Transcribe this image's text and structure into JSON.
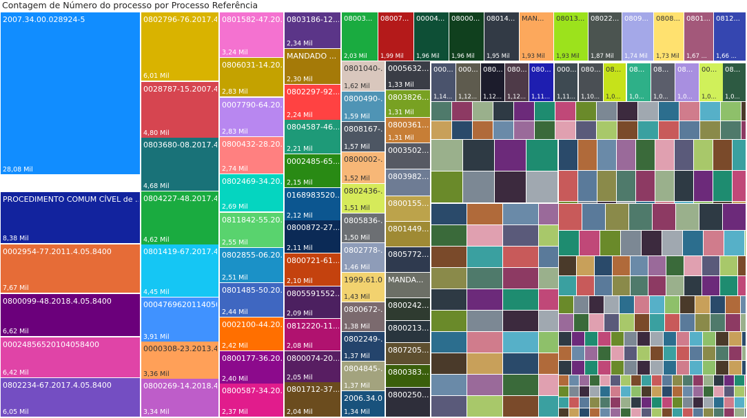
{
  "chart_data": {
    "type": "treemap",
    "title": "Contagem de Número do processo por Processo Referência",
    "value_unit": "Mil",
    "items": [
      {
        "label": "2007.34.00.028924-5",
        "value": "28,08 Mil",
        "color": "#118DFF"
      },
      {
        "label": "PROCEDIMENTO COMUM CÍVEL de ...",
        "value": "8,38 Mil",
        "color": "#12239E"
      },
      {
        "label": "0002954-77.2011.4.05.8400",
        "value": "7,67 Mil",
        "color": "#E66C37"
      },
      {
        "label": "0800099-48.2018.4.05.8400",
        "value": "6,62 Mil",
        "color": "#6B007B"
      },
      {
        "label": "00024856520104058400",
        "value": "6,42 Mil",
        "color": "#E044A7"
      },
      {
        "label": "0802234-67.2017.4.05.8400",
        "value": "6,05 Mil",
        "color": "#744EC2"
      },
      {
        "label": "0802796-76.2017.4...",
        "value": "6,01 Mil",
        "color": "#D9B300"
      },
      {
        "label": "0028787-15.2007.4...",
        "value": "4,80 Mil",
        "color": "#D64550"
      },
      {
        "label": "0803680-08.2017.4...",
        "value": "4,68 Mil",
        "color": "#197278"
      },
      {
        "label": "0804227-48.2017.4...",
        "value": "4,62 Mil",
        "color": "#1AAB40"
      },
      {
        "label": "0801419-67.2017.4...",
        "value": "4,45 Mil",
        "color": "#15C6F4"
      },
      {
        "label": "0004769620114050...",
        "value": "3,91 Mil",
        "color": "#4092FF"
      },
      {
        "label": "0000308-23.2013.4...",
        "value": "3,36 Mil",
        "color": "#FFA058"
      },
      {
        "label": "0800269-14.2018.4...",
        "value": "3,34 Mil",
        "color": "#BE5DC9"
      },
      {
        "label": "0801582-47.20...",
        "value": "3,24 Mil",
        "color": "#F472D0"
      },
      {
        "label": "0806031-14.20...",
        "value": "2,83 Mil",
        "color": "#C4A200"
      },
      {
        "label": "0007790-64.20...",
        "value": "2,83 Mil",
        "color": "#B887F0"
      },
      {
        "label": "0800432-28.20...",
        "value": "2,74 Mil",
        "color": "#FF8080"
      },
      {
        "label": "0802469-34.20...",
        "value": "2,69 Mil",
        "color": "#05D5C0"
      },
      {
        "label": "0811842-55.20...",
        "value": "2,55 Mil",
        "color": "#59D36E"
      },
      {
        "label": "0802855-06.20...",
        "value": "2,51 Mil",
        "color": "#1B91C7"
      },
      {
        "label": "0801485-50.20...",
        "value": "2,44 Mil",
        "color": "#3F67C1"
      },
      {
        "label": "0002100-44.20...",
        "value": "2,42 Mil",
        "color": "#FF6F00"
      },
      {
        "label": "0800177-36.20...",
        "value": "2,40 Mil",
        "color": "#8C0A8C"
      },
      {
        "label": "0800587-34.20...",
        "value": "2,37 Mil",
        "color": "#E11C8C"
      },
      {
        "label": "0803186-12....",
        "value": "2,34 Mil",
        "color": "#5B3588"
      },
      {
        "label": "MANDADO ...",
        "value": "2,30 Mil",
        "color": "#A57A08"
      },
      {
        "label": "0802297-92....",
        "value": "2,24 Mil",
        "color": "#FF4242"
      },
      {
        "label": "0804587-46....",
        "value": "2,21 Mil",
        "color": "#1E9A78"
      },
      {
        "label": "0002485-65....",
        "value": "2,15 Mil",
        "color": "#298A14"
      },
      {
        "label": "0168983520...",
        "value": "2,12 Mil",
        "color": "#0C5690"
      },
      {
        "label": "0800872-27....",
        "value": "2,11 Mil",
        "color": "#0B2A56"
      },
      {
        "label": "0800721-61....",
        "value": "2,10 Mil",
        "color": "#C4420E"
      },
      {
        "label": "0805591552...",
        "value": "2,09 Mil",
        "color": "#4C2060"
      },
      {
        "label": "0812220-11....",
        "value": "2,08 Mil",
        "color": "#B0126F"
      },
      {
        "label": "0800074-20....",
        "value": "2,05 Mil",
        "color": "#581E62"
      },
      {
        "label": "0801712-37....",
        "value": "2,04 Mil",
        "color": "#6B4C1E"
      },
      {
        "label": "08003...",
        "value": "2,03 Mil",
        "color": "#1AAB40"
      },
      {
        "label": "08007...",
        "value": "1,99 Mil",
        "color": "#B41A1A"
      },
      {
        "label": "00004...",
        "value": "1,96 Mil",
        "color": "#0E4F36"
      },
      {
        "label": "08000...",
        "value": "1,96 Mil",
        "color": "#10401E"
      },
      {
        "label": "08014...",
        "value": "1,95 Mil",
        "color": "#323A45"
      },
      {
        "label": "MAN...",
        "value": "1,93 Mil",
        "color": "#FCA85C"
      },
      {
        "label": "08013...",
        "value": "1,93 Mil",
        "color": "#9CE21C"
      },
      {
        "label": "08022...",
        "value": "1,87 Mil",
        "color": "#4B5450"
      },
      {
        "label": "0809...",
        "value": "1,74 Mil",
        "color": "#A4A8E8"
      },
      {
        "label": "0808...",
        "value": "1,73 Mil",
        "color": "#FFE16F"
      },
      {
        "label": "0801...",
        "value": "1,67 ...",
        "color": "#A3587A"
      },
      {
        "label": "0812...",
        "value": "1,66 ...",
        "color": "#3546B0"
      },
      {
        "label": "0801040-...",
        "value": "1,62 Mil",
        "color": "#D9C7BD"
      },
      {
        "label": "0005632...",
        "value": "1,33 Mil",
        "color": "#3A3D46"
      },
      {
        "label": "0800490-...",
        "value": "1,59 Mil",
        "color": "#4F94B5"
      },
      {
        "label": "0803826...",
        "value": "1,31 Mil",
        "color": "#78A122"
      },
      {
        "label": "0808167-...",
        "value": "1,57 Mil",
        "color": "#4D5663"
      },
      {
        "label": "0800361...",
        "value": "1,31 Mil",
        "color": "#C77E36"
      },
      {
        "label": "0800002-...",
        "value": "1,52 Mil",
        "color": "#F7B777"
      },
      {
        "label": "0003502...",
        "value": "",
        "color": "#565963"
      },
      {
        "label": "0802436-...",
        "value": "1,51 Mil",
        "color": "#D6EA5A"
      },
      {
        "label": "0803982...",
        "value": "",
        "color": "#6E7C94"
      },
      {
        "label": "0805836-...",
        "value": "1,50 Mil",
        "color": "#6C6F73"
      },
      {
        "label": "0800155...",
        "value": "",
        "color": "#BCA34B"
      },
      {
        "label": "0802778-...",
        "value": "1,46 Mil",
        "color": "#8E9CB8"
      },
      {
        "label": "0801449...",
        "value": "",
        "color": "#9F8A34"
      },
      {
        "label": "1999.61.0...",
        "value": "1,43 Mil",
        "color": "#F2D26F"
      },
      {
        "label": "0805772...",
        "value": "",
        "color": "#2F3A4F"
      },
      {
        "label": "0800672-...",
        "value": "1,38 Mil",
        "color": "#7B6A6E"
      },
      {
        "label": "MANDA...",
        "value": "",
        "color": "#6C6F66"
      },
      {
        "label": "0802249-...",
        "value": "1,37 Mil",
        "color": "#24446C"
      },
      {
        "label": "0800242...",
        "value": "",
        "color": "#2F3B30"
      },
      {
        "label": "0804845-...",
        "value": "1,37 Mil",
        "color": "#A3A37E"
      },
      {
        "label": "0800213...",
        "value": "",
        "color": "#29353E"
      },
      {
        "label": "2006.34.0...",
        "value": "1,34 Mil",
        "color": "#19527C"
      },
      {
        "label": "0807205...",
        "value": "",
        "color": "#5E4F2F"
      },
      {
        "label": "0800383...",
        "value": "",
        "color": "#3A5F0B"
      },
      {
        "label": "0800250...",
        "value": "",
        "color": "#2E2E3A"
      },
      {
        "label": "000...",
        "value": "1,14...",
        "color": "#4A536C"
      },
      {
        "label": "000...",
        "value": "1,12...",
        "color": "#5E5B4E"
      },
      {
        "label": "080...",
        "value": "1,12...",
        "color": "#1C1C2C"
      },
      {
        "label": "080...",
        "value": "1,12...",
        "color": "#4E3A48"
      },
      {
        "label": "080...",
        "value": "1,11...",
        "color": "#1E1EB0"
      },
      {
        "label": "000...",
        "value": "1,11...",
        "color": "#3E4A52"
      },
      {
        "label": "080...",
        "value": "1,10...",
        "color": "#4A4F54"
      },
      {
        "label": "08...",
        "value": "1,0...",
        "color": "#C6E21A"
      },
      {
        "label": "08...",
        "value": "1,0...",
        "color": "#2EB088"
      },
      {
        "label": "08...",
        "value": "1,0...",
        "color": "#5B5E6B"
      },
      {
        "label": "08...",
        "value": "1,0...",
        "color": "#A88FE0"
      },
      {
        "label": "00...",
        "value": "1,0...",
        "color": "#D0F05A"
      },
      {
        "label": "08...",
        "value": "1,0...",
        "color": "#2D5A42"
      }
    ]
  }
}
